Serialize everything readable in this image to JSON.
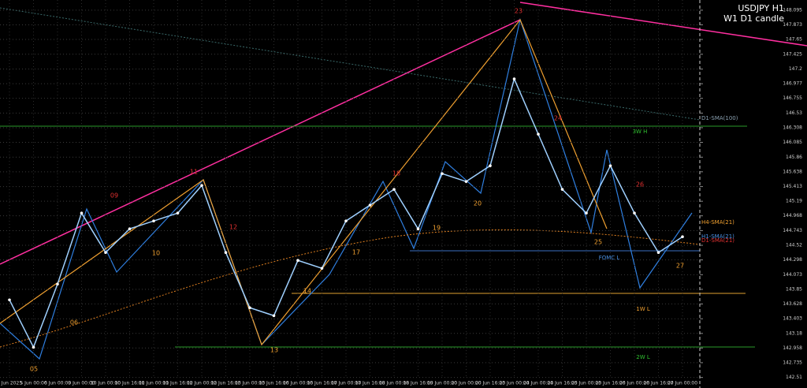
{
  "chart_data": {
    "type": "line",
    "title": "USDJPY H1",
    "subtitle": "W1 D1 candle",
    "categories": [
      "4 Jun 2025",
      "5 Jun 00:00",
      "6 Jun 00:00",
      "9 Jun 00:00",
      "10 Jun 00:00",
      "10 Jun 16:00",
      "11 Jun 00:00",
      "11 Jun 16:00",
      "12 Jun 00:00",
      "12 Jun 16:00",
      "13 Jun 00:00",
      "13 Jun 16:00",
      "16 Jun 00:00",
      "16 Jun 16:00",
      "17 Jun 00:00",
      "17 Jun 16:00",
      "18 Jun 00:00",
      "18 Jun 16:00",
      "19 Jun 00:00",
      "20 Jun 00:00",
      "20 Jun 16:00",
      "23 Jun 00:00",
      "24 Jun 00:00",
      "24 Jun 16:00",
      "25 Jun 00:00",
      "25 Jun 16:00",
      "26 Jun 00:00",
      "26 Jun 16:00",
      "27 Jun 00:00"
    ],
    "values": [
      143.69,
      142.97,
      143.93,
      145.01,
      144.41,
      144.77,
      144.89,
      145.01,
      145.43,
      144.41,
      143.57,
      143.45,
      144.29,
      144.17,
      144.89,
      145.13,
      145.37,
      144.77,
      145.61,
      145.49,
      145.73,
      147.05,
      146.21,
      145.37,
      145.01,
      145.73,
      145.01,
      144.41,
      144.65
    ],
    "color": "#9fd0ff",
    "ylim": [
      142.35,
      148.25
    ],
    "yticks": [
      148.095,
      147.873,
      147.65,
      147.425,
      147.2,
      146.977,
      146.755,
      146.53,
      146.308,
      146.085,
      145.86,
      145.638,
      145.413,
      145.19,
      144.968,
      144.743,
      144.52,
      144.298,
      144.073,
      143.85,
      143.628,
      143.403,
      143.18,
      142.958,
      142.735,
      142.51
    ],
    "grid": true,
    "annotations": [
      {
        "text": "05",
        "color": "#f0a030"
      },
      {
        "text": "06",
        "color": "#f0a030"
      },
      {
        "text": "09",
        "color": "#e03030"
      },
      {
        "text": "10",
        "color": "#f0a030"
      },
      {
        "text": "11",
        "color": "#e03030"
      },
      {
        "text": "12",
        "color": "#e03030"
      },
      {
        "text": "13",
        "color": "#f0a030"
      },
      {
        "text": "14",
        "color": "#f0a030"
      },
      {
        "text": "17",
        "color": "#f0a030"
      },
      {
        "text": "18",
        "color": "#e03030"
      },
      {
        "text": "19",
        "color": "#f0a030"
      },
      {
        "text": "20",
        "color": "#f0a030"
      },
      {
        "text": "23",
        "color": "#e03030"
      },
      {
        "text": "24",
        "color": "#e03030"
      },
      {
        "text": "25",
        "color": "#f0a030"
      },
      {
        "text": "26",
        "color": "#e03030"
      },
      {
        "text": "27",
        "color": "#f0a030"
      },
      {
        "text": "3W H",
        "color": "#30c030"
      },
      {
        "text": "1W L",
        "color": "#f0a030"
      },
      {
        "text": "2W L",
        "color": "#30c030"
      },
      {
        "text": "FOMC L",
        "color": "#4a90e2"
      },
      {
        "text": "D1-SMA(100)",
        "color": "#8aa0b0"
      },
      {
        "text": "H4-SMA(21)",
        "color": "#f0a030"
      },
      {
        "text": "H1-SMA(21)",
        "color": "#4a90e2"
      },
      {
        "text": "D1-SMA(21)",
        "color": "#e03030"
      }
    ]
  }
}
